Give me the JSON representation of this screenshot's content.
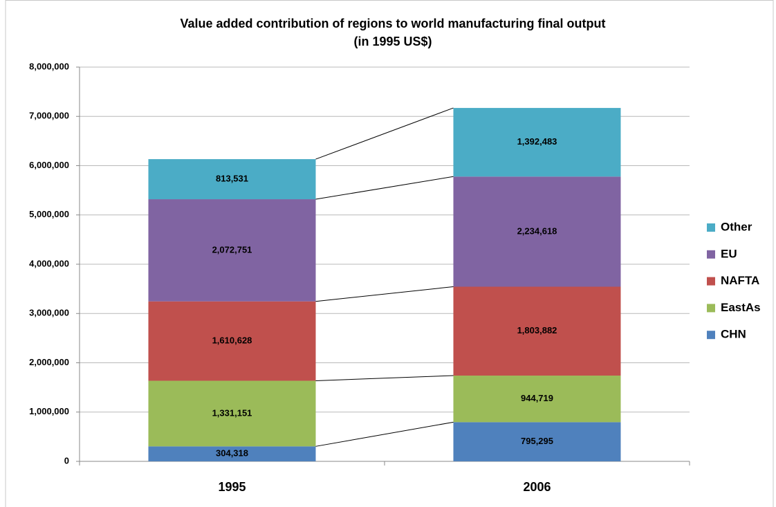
{
  "chart_data": {
    "type": "stacked_bar",
    "title": "Value added contribution of regions to  world manufacturing final output",
    "subtitle": "(in 1995 US$)",
    "categories": [
      "1995",
      "2006"
    ],
    "series": [
      {
        "name": "CHN",
        "color": "#4f81bd",
        "values": [
          304318,
          795295
        ],
        "value_labels": [
          "304,318",
          "795,295"
        ]
      },
      {
        "name": "EastAs",
        "color": "#9bbb59",
        "values": [
          1331151,
          944719
        ],
        "value_labels": [
          "1,331,151",
          "944,719"
        ]
      },
      {
        "name": "NAFTA",
        "color": "#c0504d",
        "values": [
          1610628,
          1803882
        ],
        "value_labels": [
          "1,610,628",
          "1,803,882"
        ]
      },
      {
        "name": "EU",
        "color": "#8064a2",
        "values": [
          2072751,
          2234618
        ],
        "value_labels": [
          "2,072,751",
          "2,234,618"
        ]
      },
      {
        "name": "Other",
        "color": "#4bacc6",
        "values": [
          813531,
          1392483
        ],
        "value_labels": [
          "813,531",
          "1,392,483"
        ]
      }
    ],
    "ylim": [
      0,
      8000000
    ],
    "yticks": [
      0,
      {
        "value": 1000000,
        "label": "1,000,000"
      },
      {
        "value": 2000000,
        "label": "2,000,000"
      },
      {
        "value": 3000000,
        "label": "3,000,000"
      },
      {
        "value": 4000000,
        "label": "4,000,000"
      },
      {
        "value": 5000000,
        "label": "5,000,000"
      },
      {
        "value": 6000000,
        "label": "6,000,000"
      },
      {
        "value": 7000000,
        "label": "7,000,000"
      },
      {
        "value": 8000000,
        "label": "8,000,000"
      }
    ],
    "grid": true,
    "legend": "right"
  }
}
